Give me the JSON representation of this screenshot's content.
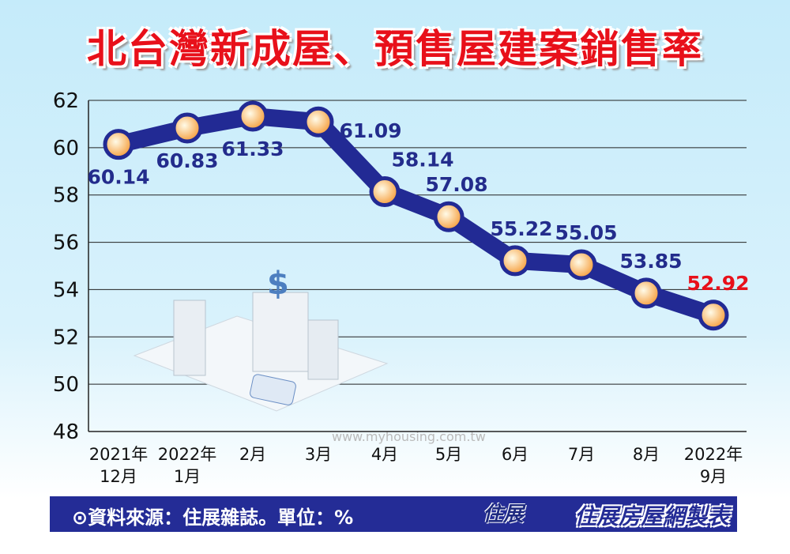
{
  "chart_data": {
    "type": "line",
    "title": "北台灣新成屋、預售屋建案銷售率",
    "categories": [
      "2021年\n12月",
      "2022年\n1月",
      "2月",
      "3月",
      "4月",
      "5月",
      "6月",
      "7月",
      "8月",
      "2022年\n9月"
    ],
    "values": [
      60.14,
      60.83,
      61.33,
      61.09,
      58.14,
      57.08,
      55.22,
      55.05,
      53.85,
      52.92
    ],
    "labels": [
      "60.14",
      "60.83",
      "61.33",
      "61.09",
      "58.14",
      "57.08",
      "55.22",
      "55.05",
      "53.85",
      "52.92"
    ],
    "ylim": [
      48,
      62
    ],
    "yticks": [
      48,
      50,
      52,
      54,
      56,
      58,
      60,
      62
    ],
    "grid": true,
    "colors": {
      "line": "#222a94",
      "marker": "#f6b25a",
      "label": "#232c8c",
      "highlight": "#e8101a"
    }
  },
  "footer": {
    "source": "⊙資料來源：住展雜誌。單位：%",
    "logo": "住展",
    "brand": "住展房屋網製表"
  },
  "watermark": "www.myhousing.com.tw"
}
